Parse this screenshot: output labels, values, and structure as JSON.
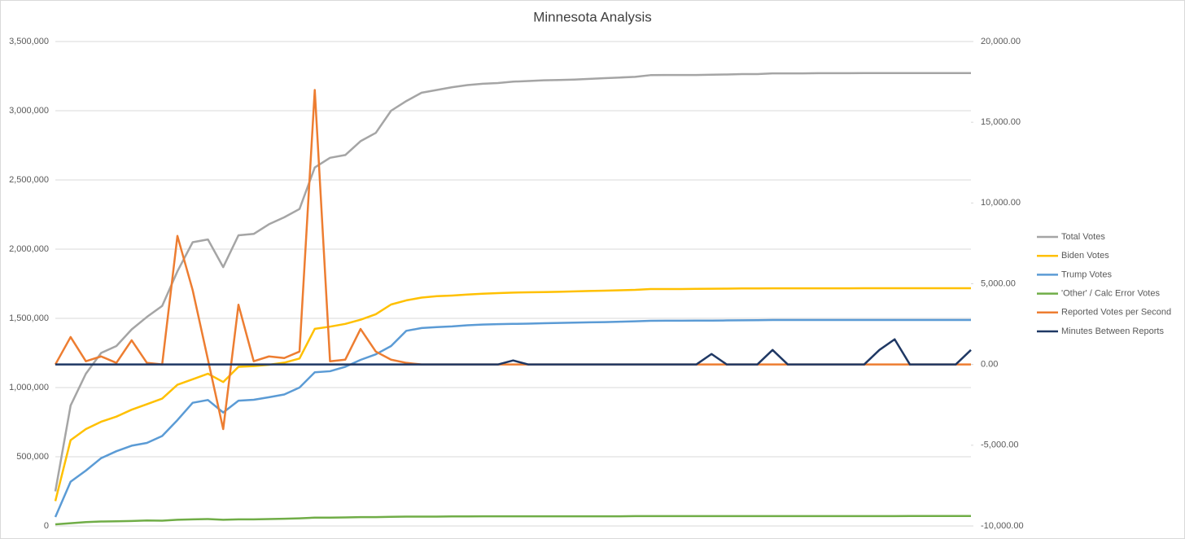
{
  "chart_data": {
    "type": "line",
    "title": "Minnesota Analysis",
    "categories": [
      null,
      null,
      null,
      null,
      null,
      null,
      null,
      null,
      null,
      null,
      null,
      null,
      null,
      null,
      null,
      null,
      null,
      null,
      null,
      null,
      null,
      null,
      null,
      null,
      null,
      null,
      null,
      null,
      null,
      null,
      null,
      null,
      null,
      null,
      null,
      null,
      null,
      null,
      null,
      null,
      null,
      null,
      null,
      null,
      null,
      null,
      null,
      null,
      null,
      null,
      null,
      null,
      null,
      null,
      null,
      null,
      null,
      null,
      null,
      null,
      null
    ],
    "ylim": [
      0,
      3500000
    ],
    "yticks": [
      0,
      {
        "value": 500000,
        "label": "500,000"
      },
      {
        "value": 1000000,
        "label": "1,000,000"
      },
      {
        "value": 1500000,
        "label": "1,500,000"
      },
      {
        "value": 2000000,
        "label": "2,000,000"
      },
      {
        "value": 2500000,
        "label": "2,500,000"
      },
      {
        "value": 3000000,
        "label": "3,000,000"
      },
      {
        "value": 3500000,
        "label": "3,500,000"
      }
    ],
    "y2lim": [
      -10000,
      20000
    ],
    "y2ticks": [
      {
        "value": -10000,
        "label": "-10,000.00"
      },
      {
        "value": -5000,
        "label": "-5,000.00"
      },
      {
        "value": 0,
        "label": "0.00"
      },
      {
        "value": 5000,
        "label": "5,000.00"
      },
      {
        "value": 10000,
        "label": "10,000.00"
      },
      {
        "value": 15000,
        "label": "15,000.00"
      },
      {
        "value": 20000,
        "label": "20,000.00"
      }
    ],
    "grid": true,
    "legend": "right",
    "series": [
      {
        "name": "Total Votes",
        "color": "#a5a5a5",
        "values": [
          250000,
          870000,
          1100000,
          1250000,
          1300000,
          1420000,
          1510000,
          1590000,
          1840000,
          2050000,
          2070000,
          1870000,
          2100000,
          2110000,
          2180000,
          2230000,
          2290000,
          2590000,
          2660000,
          2680000,
          2780000,
          2840000,
          3000000,
          3070000,
          3130000,
          3150000,
          3170000,
          3185000,
          3195000,
          3200000,
          3210000,
          3215000,
          3220000,
          3222000,
          3225000,
          3230000,
          3235000,
          3240000,
          3245000,
          3257000,
          3258000,
          3258000,
          3258000,
          3260000,
          3262000,
          3265000,
          3265000,
          3270000,
          3270000,
          3270000,
          3271000,
          3271000,
          3271000,
          3272000,
          3272000,
          3272000,
          3272000,
          3272000,
          3272000,
          3272000,
          3272000
        ]
      },
      {
        "name": "Biden Votes",
        "color": "#ffc000",
        "values": [
          180000,
          620000,
          700000,
          753000,
          790000,
          840000,
          880000,
          920000,
          1020000,
          1060000,
          1100000,
          1040000,
          1150000,
          1155000,
          1165000,
          1180000,
          1210000,
          1424000,
          1440000,
          1460000,
          1490000,
          1530000,
          1600000,
          1630000,
          1650000,
          1660000,
          1665000,
          1672000,
          1678000,
          1682000,
          1686000,
          1688000,
          1690000,
          1692000,
          1695000,
          1698000,
          1700000,
          1703000,
          1706000,
          1712000,
          1712000,
          1712000,
          1713000,
          1714000,
          1715000,
          1716000,
          1716000,
          1717000,
          1717000,
          1717000,
          1717000,
          1717000,
          1717000,
          1718000,
          1718000,
          1718000,
          1718000,
          1718000,
          1718000,
          1718000,
          1718000
        ]
      },
      {
        "name": "Trump Votes",
        "color": "#5b9bd5",
        "values": [
          65000,
          320000,
          400000,
          490000,
          540000,
          580000,
          600000,
          650000,
          765000,
          890000,
          910000,
          820000,
          905000,
          912000,
          930000,
          950000,
          1000000,
          1110000,
          1118000,
          1150000,
          1200000,
          1240000,
          1300000,
          1410000,
          1430000,
          1437000,
          1442000,
          1450000,
          1455000,
          1458000,
          1460000,
          1462000,
          1465000,
          1467000,
          1469000,
          1471000,
          1473000,
          1476000,
          1479000,
          1482000,
          1483000,
          1483000,
          1484000,
          1484000,
          1485000,
          1486000,
          1487000,
          1488000,
          1488000,
          1488000,
          1488000,
          1488000,
          1488000,
          1488000,
          1488000,
          1488000,
          1488000,
          1488000,
          1488000,
          1488000,
          1488000
        ]
      },
      {
        "name": "'Other' / Calc Error Votes",
        "color": "#70ad47",
        "values": [
          12000,
          20000,
          28000,
          32000,
          34000,
          36000,
          40000,
          38000,
          45000,
          48000,
          50000,
          45000,
          48000,
          48000,
          50000,
          52000,
          55000,
          60000,
          60000,
          62000,
          64000,
          64000,
          66000,
          68000,
          68000,
          68000,
          69000,
          69000,
          70000,
          70000,
          70000,
          70000,
          70000,
          70000,
          70000,
          70000,
          70000,
          70000,
          71000,
          71000,
          71000,
          71000,
          71000,
          71000,
          71000,
          71000,
          71000,
          71000,
          71000,
          71000,
          71000,
          71000,
          71000,
          71000,
          71000,
          71000,
          72000,
          72000,
          72000,
          72000,
          72000
        ]
      },
      {
        "name": "Reported Votes per Second",
        "color": "#ed7d31",
        "axis": "y2",
        "values": [
          0,
          1700,
          200,
          500,
          100,
          1500,
          100,
          0,
          7960,
          4600,
          300,
          -4000,
          3700,
          200,
          500,
          400,
          800,
          17000,
          200,
          300,
          2200,
          800,
          300,
          100,
          0,
          0,
          0,
          0,
          0,
          0,
          0,
          0,
          0,
          0,
          0,
          0,
          0,
          0,
          0,
          0,
          0,
          0,
          0,
          0,
          0,
          0,
          0,
          0,
          0,
          0,
          0,
          0,
          0,
          0,
          0,
          0,
          0,
          0,
          0,
          0,
          0
        ]
      },
      {
        "name": "Minutes Between Reports",
        "color": "#1f3864",
        "axis": "y2",
        "values": [
          0,
          0,
          0,
          0,
          0,
          0,
          0,
          0,
          0,
          0,
          0,
          0,
          0,
          0,
          0,
          0,
          0,
          0,
          0,
          0,
          0,
          0,
          0,
          0,
          0,
          0,
          0,
          0,
          0,
          0,
          250,
          0,
          0,
          0,
          0,
          0,
          0,
          0,
          0,
          0,
          0,
          0,
          0,
          650,
          0,
          0,
          0,
          900,
          0,
          0,
          0,
          0,
          0,
          0,
          900,
          1560,
          0,
          0,
          0,
          0,
          900
        ]
      }
    ]
  }
}
